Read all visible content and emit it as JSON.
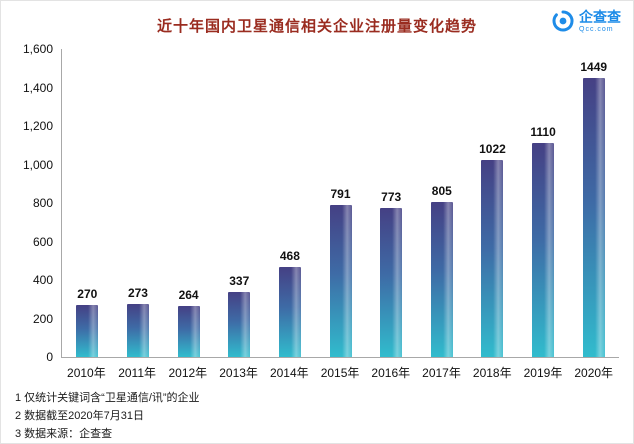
{
  "header": {
    "title": "近十年国内卫星通信相关企业注册量变化趋势",
    "logo": {
      "name": "企查查",
      "domain": "Qcc.com"
    }
  },
  "chart_data": {
    "type": "bar",
    "title": "近十年国内卫星通信相关企业注册量变化趋势",
    "categories": [
      "2010年",
      "2011年",
      "2012年",
      "2013年",
      "2014年",
      "2015年",
      "2016年",
      "2017年",
      "2018年",
      "2019年",
      "2020年"
    ],
    "values": [
      270,
      273,
      264,
      337,
      468,
      791,
      773,
      805,
      1022,
      1110,
      1449
    ],
    "xlabel": "",
    "ylabel": "",
    "ylim": [
      0,
      1600
    ],
    "ytick_values": [
      0,
      200,
      400,
      600,
      800,
      1000,
      1200,
      1400,
      1600
    ],
    "ytick_labels": [
      "0",
      "200",
      "400",
      "600",
      "800",
      "1,000",
      "1,200",
      "1,400",
      "1,600"
    ],
    "grid": false,
    "legend": "none",
    "colors": {
      "bar_top": "#454084",
      "bar_mid": "#3e6ba6",
      "bar_bottom": "#31bccd",
      "title": "#9a2c20",
      "axis": "#a8a8a8",
      "label": "#111111",
      "logo_blue": "#1e8ce8"
    }
  },
  "footer": {
    "notes": [
      "1 仅统计关键词含“卫星通信/讯”的企业",
      "2 数据截至2020年7月31日",
      "3 数据来源：企查查"
    ]
  }
}
